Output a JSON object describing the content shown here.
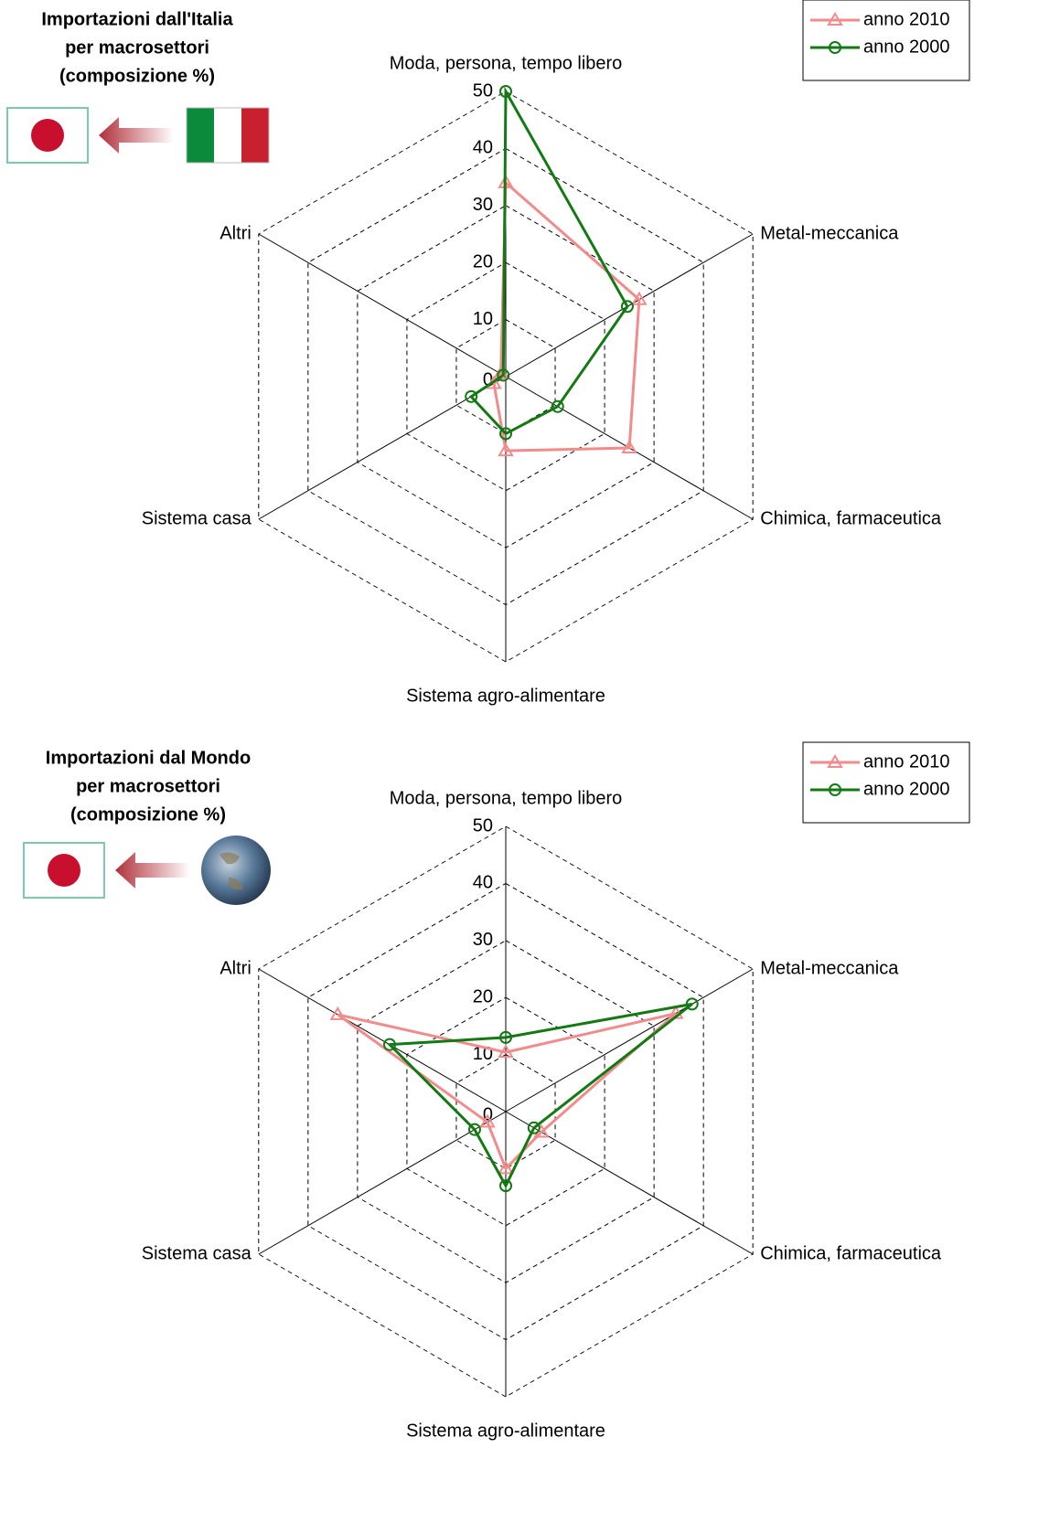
{
  "chart_data": [
    {
      "type": "radar",
      "title": [
        "Importazioni dall'Italia",
        "per macrosettori",
        "(composizione %)"
      ],
      "categories": [
        "Moda, persona, tempo libero",
        "Metal-meccanica",
        "Chimica, farmaceutica",
        "Sistema agro-alimentare",
        "Sistema casa",
        "Altri"
      ],
      "series": [
        {
          "name": "anno 2010",
          "color": "#f28b8b",
          "marker": "triangle",
          "values": [
            34,
            27,
            25,
            13,
            2.4,
            1
          ]
        },
        {
          "name": "anno 2000",
          "color": "#137a13",
          "marker": "circle",
          "values": [
            50,
            24.6,
            10.5,
            10,
            7,
            0.5
          ]
        }
      ],
      "ylim": [
        0,
        50
      ],
      "yticks": [
        0,
        10,
        20,
        30,
        40,
        50
      ],
      "grid": true,
      "legend": "upper right"
    },
    {
      "type": "radar",
      "title": [
        "Importazioni dal Mondo",
        "per macrosettori",
        "(composizione %)"
      ],
      "categories": [
        "Moda, persona, tempo libero",
        "Metal-meccanica",
        "Chimica, farmaceutica",
        "Sistema agro-alimentare",
        "Sistema casa",
        "Altri"
      ],
      "series": [
        {
          "name": "anno 2010",
          "color": "#f28b8b",
          "marker": "triangle",
          "values": [
            10.4,
            34.4,
            7.2,
            10,
            3.7,
            34
          ]
        },
        {
          "name": "anno 2000",
          "color": "#137a13",
          "marker": "circle",
          "values": [
            13,
            37.7,
            5.7,
            13,
            6.3,
            23.5
          ]
        }
      ],
      "ylim": [
        0,
        50
      ],
      "yticks": [
        0,
        10,
        20,
        30,
        40,
        50
      ],
      "grid": true,
      "legend": "upper right"
    }
  ]
}
